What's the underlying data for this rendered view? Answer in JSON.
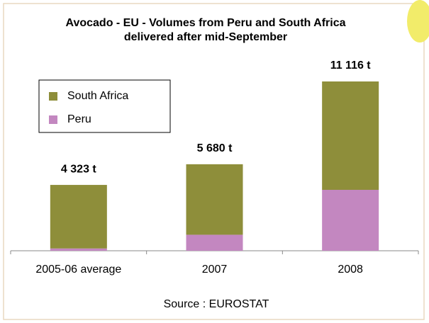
{
  "chart_data": {
    "type": "stacked-bar",
    "title": [
      "Avocado - EU - Volumes from Peru and South Africa",
      "delivered after mid-September"
    ],
    "categories": [
      "2005-06 average",
      "2007",
      "2008"
    ],
    "series": [
      {
        "name": "Peru",
        "color": "#c387c0",
        "values": [
          150,
          1050,
          4000
        ]
      },
      {
        "name": "South Africa",
        "color": "#8e8e3a",
        "values": [
          4173,
          4630,
          7116
        ]
      }
    ],
    "totals": [
      4323,
      5680,
      11116
    ],
    "total_labels": [
      "4 323 t",
      "5 680 t",
      "11 116 t"
    ],
    "source": "Source : EUROSTAT"
  }
}
